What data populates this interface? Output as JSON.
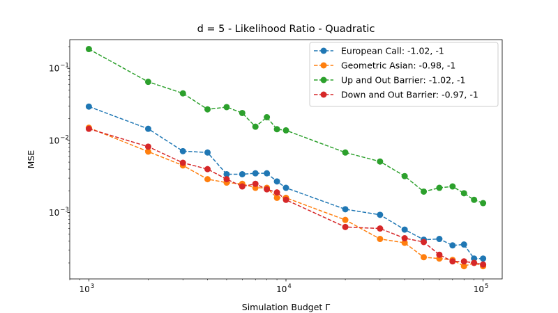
{
  "chart_data": {
    "type": "line",
    "title": "d = 5 - Likelihood Ratio - Quadratic",
    "xlabel": "Simulation Budget Γ",
    "ylabel": "MSE",
    "xscale": "log",
    "yscale": "log",
    "xlim": [
      800,
      125000
    ],
    "ylim": [
      0.00012,
      0.25
    ],
    "x_major_ticks": [
      {
        "value": 1000,
        "base": "10",
        "exp": "3"
      },
      {
        "value": 10000,
        "base": "10",
        "exp": "4"
      },
      {
        "value": 100000,
        "base": "10",
        "exp": "5"
      }
    ],
    "y_major_ticks": [
      {
        "value": 0.001,
        "base": "10",
        "exp": "−3"
      },
      {
        "value": 0.01,
        "base": "10",
        "exp": "−2"
      },
      {
        "value": 0.1,
        "base": "10",
        "exp": "−1"
      }
    ],
    "grid": false,
    "legend_position": "top-right",
    "line_style": "dashed",
    "marker": "circle",
    "x": [
      1000,
      2000,
      3000,
      4000,
      5000,
      6000,
      7000,
      8000,
      9000,
      10000,
      20000,
      30000,
      40000,
      50000,
      60000,
      70000,
      80000,
      90000,
      100000
    ],
    "series": [
      {
        "name": "European Call: -1.02, -1",
        "color": "#1f77b4",
        "values": [
          0.0295,
          0.0145,
          0.0071,
          0.0068,
          0.0034,
          0.0034,
          0.0035,
          0.0035,
          0.0027,
          0.0022,
          0.00111,
          0.00093,
          0.00058,
          0.00042,
          0.00043,
          0.00035,
          0.00036,
          0.00023,
          0.00023
        ]
      },
      {
        "name": "Geometric Asian: -0.98, -1",
        "color": "#ff7f0e",
        "values": [
          0.015,
          0.007,
          0.0045,
          0.0029,
          0.0026,
          0.0025,
          0.0022,
          0.0022,
          0.0016,
          0.0016,
          0.00079,
          0.00043,
          0.00038,
          0.00024,
          0.00023,
          0.00022,
          0.00018,
          0.0002,
          0.00018
        ]
      },
      {
        "name": "Up and Out Barrier: -1.02, -1",
        "color": "#2ca02c",
        "values": [
          0.185,
          0.065,
          0.045,
          0.027,
          0.029,
          0.024,
          0.0155,
          0.021,
          0.0143,
          0.0138,
          0.0068,
          0.0051,
          0.0032,
          0.00195,
          0.0022,
          0.0023,
          0.00185,
          0.0015,
          0.00135
        ]
      },
      {
        "name": "Down and Out Barrier: -0.97, -1",
        "color": "#d62728",
        "values": [
          0.0145,
          0.0082,
          0.0049,
          0.004,
          0.0029,
          0.0023,
          0.0025,
          0.0021,
          0.0019,
          0.0015,
          0.00063,
          0.0006,
          0.00044,
          0.00039,
          0.00026,
          0.00021,
          0.00021,
          0.0002,
          0.00019
        ]
      }
    ]
  }
}
